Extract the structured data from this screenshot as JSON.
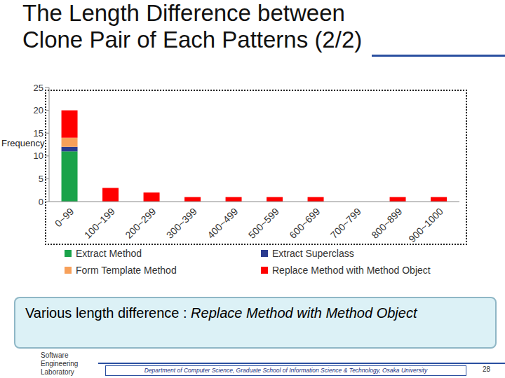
{
  "chart_data": {
    "type": "bar",
    "title": "The Length Difference between\nClone Pair of Each Patterns (2/2)",
    "y_label": "Frequency",
    "categories": [
      "0~99",
      "100~199",
      "200~299",
      "300~399",
      "400~499",
      "500~599",
      "600~699",
      "700~799",
      "800~899",
      "900~1000"
    ],
    "series": [
      {
        "name": "Extract Method",
        "color": "#1aa34a",
        "values": [
          11,
          0,
          0,
          0,
          0,
          0,
          0,
          0,
          0,
          0
        ]
      },
      {
        "name": "Extract Superclass",
        "color": "#2b3b8f",
        "values": [
          1,
          0,
          0,
          0,
          0,
          0,
          0,
          0,
          0,
          0
        ]
      },
      {
        "name": "Form Template Method",
        "color": "#f7a05a",
        "values": [
          2,
          0,
          0,
          0,
          0,
          0,
          0,
          0,
          0,
          0
        ]
      },
      {
        "name": "Replace Method with Method Object",
        "color": "#ff0000",
        "values": [
          6,
          3,
          2,
          1,
          1,
          1,
          1,
          0,
          1,
          1
        ]
      }
    ],
    "stacked": true,
    "grid": false,
    "ylim": [
      0,
      25
    ],
    "yticks": [
      0,
      5,
      10,
      15,
      20,
      25
    ],
    "annotation": [
      "Various length difference : ",
      "Replace Method with Method Object"
    ]
  },
  "slide": {
    "logo": [
      "Software",
      "Engineering",
      "Laboratory"
    ],
    "footer": "Department of Computer Science, Graduate School of Information Science & Technology, Osaka University",
    "page": 28
  }
}
